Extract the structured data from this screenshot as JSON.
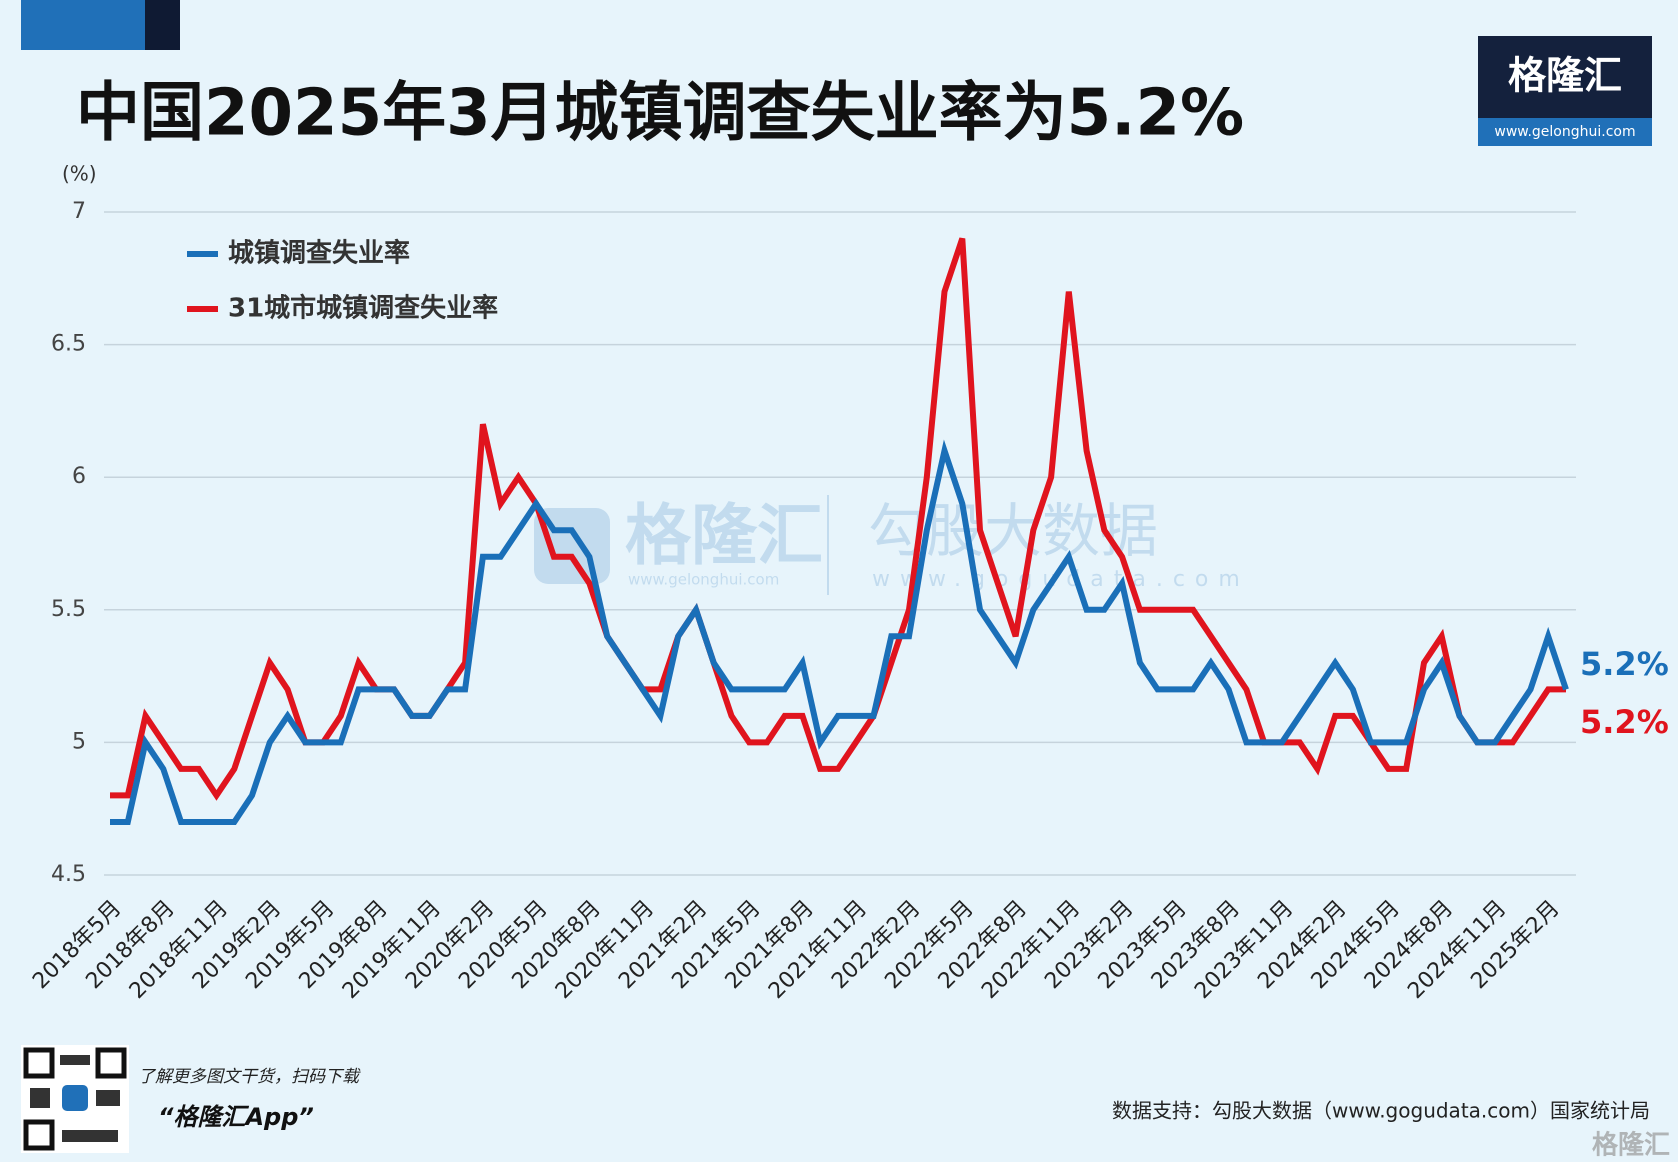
{
  "chart_data": {
    "type": "line",
    "title": "中国2025年3月城镇调查失业率为5.2%",
    "y_unit": "(%)",
    "categories": [
      "2018年5月",
      null,
      null,
      "2018年8月",
      null,
      null,
      "2018年11月",
      null,
      null,
      "2019年2月",
      null,
      null,
      "2019年5月",
      null,
      null,
      "2019年8月",
      null,
      null,
      "2019年11月",
      null,
      null,
      "2020年2月",
      null,
      null,
      "2020年5月",
      null,
      null,
      "2020年8月",
      null,
      null,
      "2020年11月",
      null,
      null,
      "2021年2月",
      null,
      null,
      "2021年5月",
      null,
      null,
      "2021年8月",
      null,
      null,
      "2021年11月",
      null,
      null,
      "2022年2月",
      null,
      null,
      "2022年5月",
      null,
      null,
      "2022年8月",
      null,
      null,
      "2022年11月",
      null,
      null,
      "2023年2月",
      null,
      null,
      "2023年5月",
      null,
      null,
      "2023年8月",
      null,
      null,
      "2023年11月",
      null,
      null,
      "2024年2月",
      null,
      null,
      "2024年5月",
      null,
      null,
      "2024年8月",
      null,
      null,
      "2024年11月",
      null,
      null,
      "2025年2月",
      null
    ],
    "series": [
      {
        "name": "城镇调查失业率",
        "color": "#1a6fb8",
        "last_label": "5.2%",
        "values": [
          4.7,
          4.7,
          5.0,
          4.9,
          4.7,
          4.7,
          4.7,
          4.7,
          4.8,
          5.0,
          5.1,
          5.0,
          5.0,
          5.0,
          5.2,
          5.2,
          5.2,
          5.1,
          5.1,
          5.2,
          5.2,
          5.7,
          5.7,
          5.8,
          5.9,
          5.8,
          5.8,
          5.7,
          5.4,
          5.3,
          5.2,
          5.1,
          5.4,
          5.5,
          5.3,
          5.2,
          5.2,
          5.2,
          5.2,
          5.3,
          5.0,
          5.1,
          5.1,
          5.1,
          5.4,
          5.4,
          5.8,
          6.1,
          5.9,
          5.5,
          5.4,
          5.3,
          5.5,
          5.6,
          5.7,
          5.5,
          5.5,
          5.6,
          5.3,
          5.2,
          5.2,
          5.2,
          5.3,
          5.2,
          5.0,
          5.0,
          5.0,
          5.1,
          5.2,
          5.3,
          5.2,
          5.0,
          5.0,
          5.0,
          5.2,
          5.3,
          5.1,
          5.0,
          5.0,
          5.1,
          5.2,
          5.4,
          5.2
        ]
      },
      {
        "name": "31城市城镇调查失业率",
        "color": "#e0141e",
        "last_label": "5.2%",
        "values": [
          4.8,
          4.8,
          5.1,
          5.0,
          4.9,
          4.9,
          4.8,
          4.9,
          5.1,
          5.3,
          5.2,
          5.0,
          5.0,
          5.1,
          5.3,
          5.2,
          5.2,
          5.1,
          5.1,
          5.2,
          5.3,
          6.2,
          5.9,
          6.0,
          5.9,
          5.7,
          5.7,
          5.6,
          5.4,
          5.3,
          5.2,
          5.2,
          5.4,
          5.5,
          5.3,
          5.1,
          5.0,
          5.0,
          5.1,
          5.1,
          4.9,
          4.9,
          5.0,
          5.1,
          5.3,
          5.5,
          6.0,
          6.7,
          6.9,
          5.8,
          5.6,
          5.4,
          5.8,
          6.0,
          6.7,
          6.1,
          5.8,
          5.7,
          5.5,
          5.5,
          5.5,
          5.5,
          5.4,
          5.3,
          5.2,
          5.0,
          5.0,
          5.0,
          4.9,
          5.1,
          5.1,
          5.0,
          4.9,
          4.9,
          5.3,
          5.4,
          5.1,
          5.0,
          5.0,
          5.0,
          5.1,
          5.2,
          5.2
        ]
      }
    ],
    "ylim": [
      4.5,
      7
    ],
    "yticks": [
      4.5,
      5,
      5.5,
      6,
      6.5,
      7
    ],
    "grid": true
  },
  "branding": {
    "logo": "格隆汇",
    "logo_url": "www.gelonghui.com",
    "watermark_1": "格隆汇",
    "watermark_1_url": "www.gelonghui.com",
    "watermark_2": "勾股大数据",
    "watermark_2_url": "www.gogudata.com",
    "qr_text": "了解更多图文干货，扫码下载",
    "app_name": "“格隆汇App”",
    "source": "数据支持：勾股大数据（www.gogudata.com）国家统计局",
    "corner_logo": "格隆汇"
  }
}
